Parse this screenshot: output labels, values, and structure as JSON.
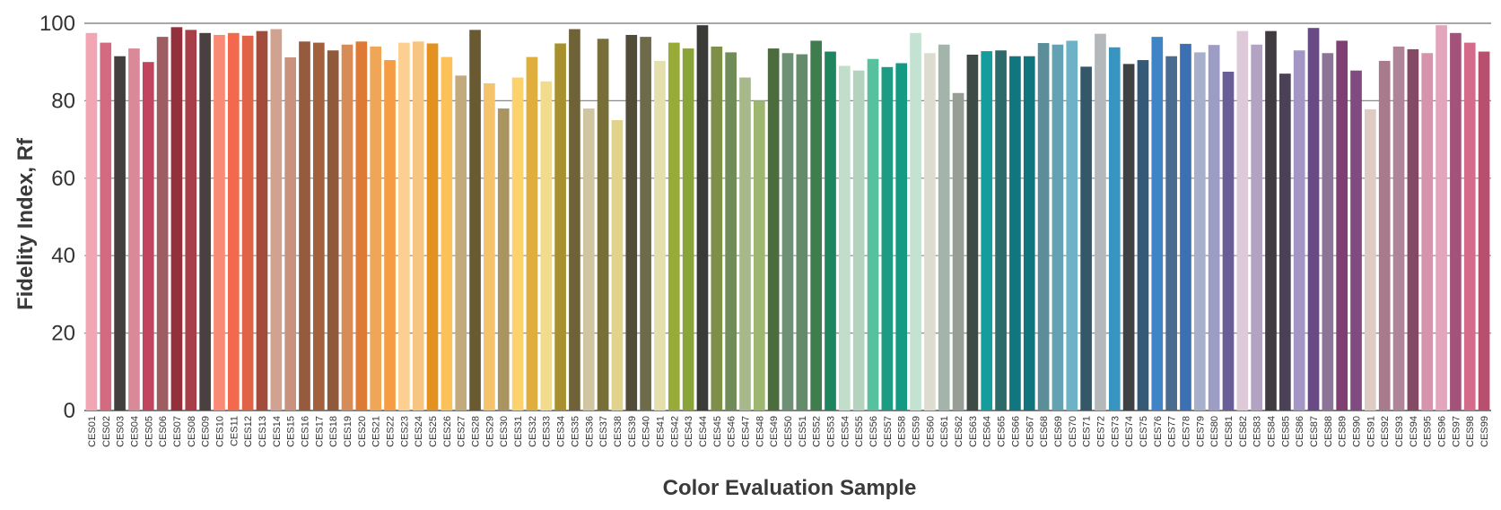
{
  "chart_data": {
    "type": "bar",
    "title": "",
    "xlabel": "Color Evaluation Sample",
    "ylabel": "Fidelity Index, Rf",
    "ylim": [
      0,
      100
    ],
    "yticks": [
      0,
      20,
      40,
      60,
      80,
      100
    ],
    "grid": "horizontal",
    "categories": [
      "CES01",
      "CES02",
      "CES03",
      "CES04",
      "CES05",
      "CES06",
      "CES07",
      "CES08",
      "CES09",
      "CES10",
      "CES11",
      "CES12",
      "CES13",
      "CES14",
      "CES15",
      "CES16",
      "CES17",
      "CES18",
      "CES19",
      "CES20",
      "CES21",
      "CES22",
      "CES23",
      "CES24",
      "CES25",
      "CES26",
      "CES27",
      "CES28",
      "CES29",
      "CES30",
      "CES31",
      "CES32",
      "CES33",
      "CES34",
      "CES35",
      "CES36",
      "CES37",
      "CES38",
      "CES39",
      "CES40",
      "CES41",
      "CES42",
      "CES43",
      "CES44",
      "CES45",
      "CES46",
      "CES47",
      "CES48",
      "CES49",
      "CES50",
      "CES51",
      "CES52",
      "CES53",
      "CES54",
      "CES55",
      "CES56",
      "CES57",
      "CES58",
      "CES59",
      "CES60",
      "CES61",
      "CES62",
      "CES63",
      "CES64",
      "CES65",
      "CES66",
      "CES67",
      "CES68",
      "CES69",
      "CES70",
      "CES71",
      "CES72",
      "CES73",
      "CES74",
      "CES75",
      "CES76",
      "CES77",
      "CES78",
      "CES79",
      "CES80",
      "CES81",
      "CES82",
      "CES83",
      "CES84",
      "CES85",
      "CES86",
      "CES87",
      "CES88",
      "CES89",
      "CES90",
      "CES91",
      "CES92",
      "CES93",
      "CES94",
      "CES95",
      "CES96",
      "CES97",
      "CES98",
      "CES99"
    ],
    "values": [
      97.5,
      95,
      91.5,
      93.5,
      90,
      96.5,
      99,
      98.3,
      97.5,
      97,
      97.5,
      96.8,
      98,
      98.5,
      91.2,
      95.3,
      95,
      93,
      94.5,
      95.3,
      94,
      90.5,
      95,
      95.3,
      94.8,
      91.3,
      86.5,
      98.3,
      84.5,
      78,
      86,
      91.3,
      85,
      94.8,
      98.5,
      78,
      96,
      75,
      97,
      96.5,
      90.3,
      95,
      93.5,
      99.5,
      94,
      92.5,
      86,
      80,
      93.5,
      92.3,
      92,
      95.5,
      92.7,
      89,
      87.8,
      90.8,
      88.7,
      89.7,
      97.5,
      92.3,
      94.5,
      82,
      91.9,
      92.8,
      93,
      91.5,
      91.5,
      94.9,
      94.5,
      95.5,
      88.8,
      97.3,
      93.8,
      89.5,
      90.5,
      96.5,
      91.5,
      94.7,
      92.5,
      94.4,
      87.5,
      98,
      94.5,
      98,
      87,
      93,
      98.8,
      92.3,
      95.5,
      87.8,
      77.8,
      90.3,
      94,
      93.3,
      92.3,
      99.5,
      97.5,
      95,
      92.7
    ],
    "colors": [
      "#f2a6b3",
      "#d26b80",
      "#443f3f",
      "#d98997",
      "#c0455e",
      "#9e5e61",
      "#94303c",
      "#a83e47",
      "#4a4040",
      "#fb8a74",
      "#f4694d",
      "#e16347",
      "#a24d3b",
      "#d1a290",
      "#c9927f",
      "#965b3d",
      "#a3603d",
      "#8f5a3c",
      "#d78c58",
      "#de7a33",
      "#f0a657",
      "#f59c44",
      "#fecf92",
      "#f8c580",
      "#e3911f",
      "#fdc15a",
      "#c3aa7c",
      "#6a5a32",
      "#f4c36b",
      "#aa9460",
      "#fdd26d",
      "#dfae3c",
      "#f3db8e",
      "#a8902e",
      "#6f6239",
      "#d0c5a1",
      "#776e38",
      "#e1d38c",
      "#504c38",
      "#6e6b4b",
      "#e4e0ae",
      "#98aa38",
      "#89a438",
      "#3a3a36",
      "#7e9048",
      "#708c58",
      "#a7b98c",
      "#9db771",
      "#4d6c3e",
      "#6e9176",
      "#658c6a",
      "#3f7c4e",
      "#1f855f",
      "#c1deca",
      "#b4d3bf",
      "#57c09e",
      "#1c9c82",
      "#129b82",
      "#c4e2d1",
      "#dcddd0",
      "#a3b5ab",
      "#969e95",
      "#3e4a46",
      "#149d9c",
      "#2c6a6c",
      "#107680",
      "#11757e",
      "#5b8e99",
      "#62a2b2",
      "#6eb2c8",
      "#355869",
      "#b4b8ba",
      "#3895c2",
      "#3f4244",
      "#355a78",
      "#3f84c6",
      "#4a6b90",
      "#3d70b3",
      "#a7b0ca",
      "#9d9cc5",
      "#6a5e98",
      "#ddc9d8",
      "#b1a3c1",
      "#403b40",
      "#4b4156",
      "#a396c4",
      "#6a4a85",
      "#8c7398",
      "#803f73",
      "#7f4b80",
      "#ddcbc4",
      "#a87a8b",
      "#b08498",
      "#844a65",
      "#d593ac",
      "#e2a5bc",
      "#a3537a",
      "#d46b8b",
      "#b84f6e"
    ]
  }
}
